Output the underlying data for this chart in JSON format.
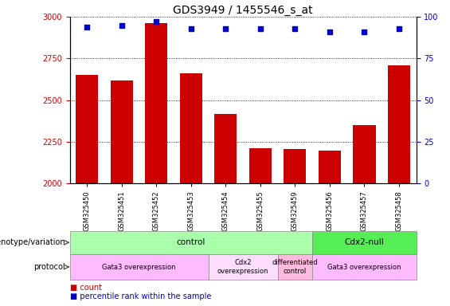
{
  "title": "GDS3949 / 1455546_s_at",
  "samples": [
    "GSM325450",
    "GSM325451",
    "GSM325452",
    "GSM325453",
    "GSM325454",
    "GSM325455",
    "GSM325459",
    "GSM325456",
    "GSM325457",
    "GSM325458"
  ],
  "counts": [
    2650,
    2620,
    2960,
    2660,
    2420,
    2210,
    2205,
    2200,
    2350,
    2710
  ],
  "percentile_ranks": [
    94,
    95,
    97,
    93,
    93,
    93,
    93,
    91,
    91,
    93
  ],
  "ylim_left": [
    2000,
    3000
  ],
  "ylim_right": [
    0,
    100
  ],
  "yticks_left": [
    2000,
    2250,
    2500,
    2750,
    3000
  ],
  "yticks_right": [
    0,
    25,
    50,
    75,
    100
  ],
  "bar_color": "#cc0000",
  "dot_color": "#0000cc",
  "grid_color": "#000000",
  "title_fontsize": 10,
  "tick_fontsize": 7,
  "genotype_groups": [
    {
      "label": "control",
      "start": 0,
      "end": 7,
      "color": "#aaffaa"
    },
    {
      "label": "Cdx2-null",
      "start": 7,
      "end": 10,
      "color": "#55ee55"
    }
  ],
  "protocol_groups": [
    {
      "label": "Gata3 overexpression",
      "start": 0,
      "end": 4,
      "color": "#ffbbff"
    },
    {
      "label": "Cdx2\noverexpression",
      "start": 4,
      "end": 6,
      "color": "#ffddff"
    },
    {
      "label": "differentiated\ncontrol",
      "start": 6,
      "end": 7,
      "color": "#ffbbdd"
    },
    {
      "label": "Gata3 overexpression",
      "start": 7,
      "end": 10,
      "color": "#ffbbff"
    }
  ]
}
